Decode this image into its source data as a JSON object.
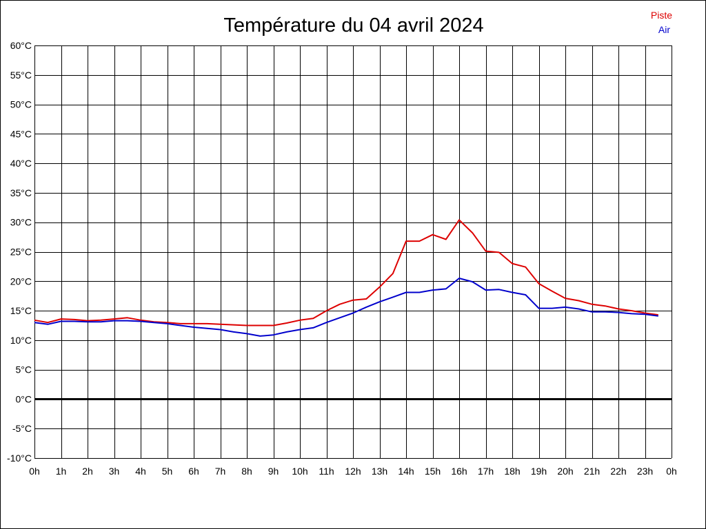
{
  "chart_data": {
    "type": "line",
    "title": "Température du 04 avril 2024",
    "xlabel": "",
    "ylabel": "",
    "x_ticks": [
      "0h",
      "1h",
      "2h",
      "3h",
      "4h",
      "5h",
      "6h",
      "7h",
      "8h",
      "9h",
      "10h",
      "11h",
      "12h",
      "13h",
      "14h",
      "15h",
      "16h",
      "17h",
      "18h",
      "19h",
      "20h",
      "21h",
      "22h",
      "23h",
      "0h"
    ],
    "y_ticks": [
      "60°C",
      "55°C",
      "50°C",
      "45°C",
      "40°C",
      "35°C",
      "30°C",
      "25°C",
      "20°C",
      "15°C",
      "10°C",
      "5°C",
      "0°C",
      "-5°C",
      "-10°C"
    ],
    "xlim": [
      0,
      24
    ],
    "ylim": [
      -10,
      60
    ],
    "grid": true,
    "zero_line": true,
    "legend_position": "top-right",
    "series": [
      {
        "name": "Piste",
        "color": "#dd0000",
        "x": [
          0,
          0.5,
          1,
          1.5,
          2,
          2.5,
          3,
          3.5,
          4,
          4.5,
          5,
          5.5,
          6,
          6.5,
          7,
          7.5,
          8,
          8.5,
          9,
          9.5,
          10,
          10.5,
          11,
          11.5,
          12,
          12.5,
          13,
          13.5,
          14,
          14.5,
          15,
          15.5,
          16,
          16.5,
          17,
          17.5,
          18,
          18.5,
          19,
          19.5,
          20,
          20.5,
          21,
          21.5,
          22,
          22.5,
          23,
          23.5
        ],
        "values": [
          13.4,
          13.0,
          13.6,
          13.5,
          13.3,
          13.4,
          13.6,
          13.8,
          13.4,
          13.1,
          13.0,
          12.8,
          12.8,
          12.8,
          12.7,
          12.6,
          12.5,
          12.5,
          12.5,
          12.9,
          13.4,
          13.7,
          15.0,
          16.1,
          16.8,
          17.0,
          19.0,
          21.3,
          26.8,
          26.8,
          27.9,
          27.1,
          30.4,
          28.2,
          25.1,
          24.9,
          23.0,
          22.4,
          19.6,
          18.3,
          17.1,
          16.7,
          16.1,
          15.8,
          15.3,
          15.0,
          14.6,
          14.3
        ]
      },
      {
        "name": "Air",
        "color": "#0000cc",
        "x": [
          0,
          0.5,
          1,
          1.5,
          2,
          2.5,
          3,
          3.5,
          4,
          4.5,
          5,
          5.5,
          6,
          6.5,
          7,
          7.5,
          8,
          8.5,
          9,
          9.5,
          10,
          10.5,
          11,
          11.5,
          12,
          12.5,
          13,
          13.5,
          14,
          14.5,
          15,
          15.5,
          16,
          16.5,
          17,
          17.5,
          18,
          18.5,
          19,
          19.5,
          20,
          20.5,
          21,
          21.5,
          22,
          22.5,
          23,
          23.5
        ],
        "values": [
          13.0,
          12.7,
          13.2,
          13.2,
          13.1,
          13.1,
          13.3,
          13.3,
          13.2,
          13.0,
          12.8,
          12.5,
          12.2,
          12.0,
          11.8,
          11.4,
          11.1,
          10.7,
          10.9,
          11.4,
          11.8,
          12.1,
          13.0,
          13.8,
          14.6,
          15.6,
          16.5,
          17.3,
          18.1,
          18.1,
          18.5,
          18.7,
          20.5,
          19.9,
          18.5,
          18.6,
          18.1,
          17.7,
          15.4,
          15.4,
          15.6,
          15.3,
          14.8,
          14.8,
          14.7,
          14.5,
          14.4,
          14.1
        ]
      }
    ]
  }
}
